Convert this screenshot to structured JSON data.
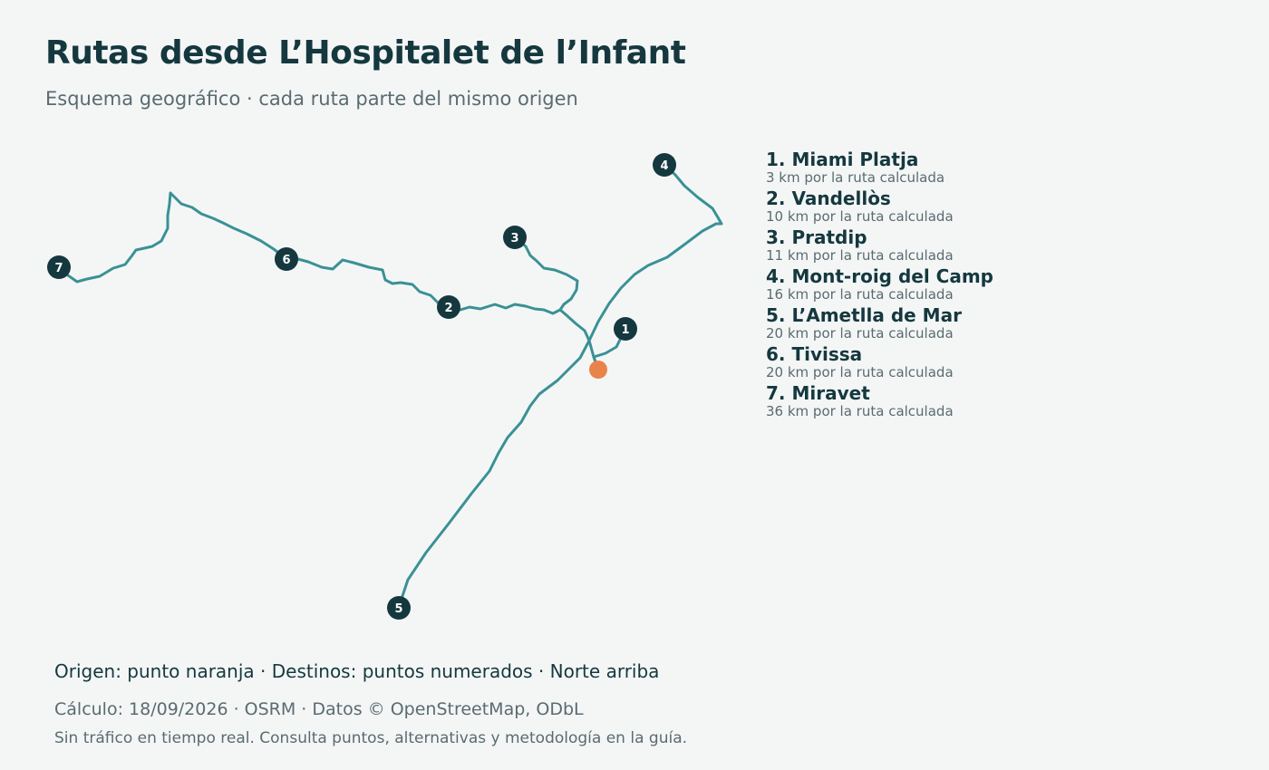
{
  "header": {
    "title": "Rutas desde L’Hospitalet de l’Infant",
    "subtitle": "Esquema geográfico · cada ruta parte del mismo origen"
  },
  "colors": {
    "route": "#3a9195",
    "marker": "#15383f",
    "origin": "#e8844a",
    "text": "#15383f",
    "muted": "#5a6b70",
    "background": "#f4f6f6"
  },
  "map": {
    "north": "up",
    "origin_icon": "origin-dot",
    "destinations": [
      {
        "number": "1",
        "name": "Miami Platja",
        "distance": "3 km por la ruta calculada"
      },
      {
        "number": "2",
        "name": "Vandellòs",
        "distance": "10 km por la ruta calculada"
      },
      {
        "number": "3",
        "name": "Pratdip",
        "distance": "11 km por la ruta calculada"
      },
      {
        "number": "4",
        "name": "Mont-roig del Camp",
        "distance": "16 km por la ruta calculada"
      },
      {
        "number": "5",
        "name": "L’Ametlla de Mar",
        "distance": "20 km por la ruta calculada"
      },
      {
        "number": "6",
        "name": "Tivissa",
        "distance": "20 km por la ruta calculada"
      },
      {
        "number": "7",
        "name": "Miravet",
        "distance": "36 km por la ruta calculada"
      }
    ]
  },
  "legend": [
    {
      "name": "1. Miami Platja",
      "distance": "3 km por la ruta calculada"
    },
    {
      "name": "2. Vandellòs",
      "distance": "10 km por la ruta calculada"
    },
    {
      "name": "3. Pratdip",
      "distance": "11 km por la ruta calculada"
    },
    {
      "name": "4. Mont-roig del Camp",
      "distance": "16 km por la ruta calculada"
    },
    {
      "name": "5. L’Ametlla de Mar",
      "distance": "20 km por la ruta calculada"
    },
    {
      "name": "6. Tivissa",
      "distance": "20 km por la ruta calculada"
    },
    {
      "name": "7. Miravet",
      "distance": "36 km por la ruta calculada"
    }
  ],
  "footer": {
    "note": "Origen: punto naranja · Destinos: puntos numerados · Norte arriba",
    "calc": "Cálculo: 18/09/2026 · OSRM · Datos © OpenStreetMap, ODbL",
    "disclaimer": "Sin tráfico en tiempo real. Consulta puntos, alternativas y metodología en la guía."
  }
}
